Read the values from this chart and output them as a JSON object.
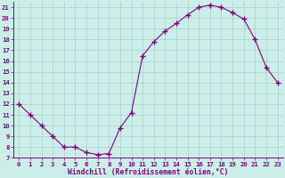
{
  "hours": [
    0,
    1,
    2,
    3,
    4,
    5,
    6,
    7,
    8,
    9,
    10,
    11,
    12,
    13,
    14,
    15,
    16,
    17,
    18,
    19,
    20,
    21,
    22,
    23
  ],
  "values": [
    12,
    11,
    10,
    9,
    8,
    8,
    7.5,
    7.3,
    7.4,
    9.8,
    11.2,
    16.5,
    17.8,
    18.8,
    19.5,
    20.3,
    21.0,
    21.2,
    21.0,
    20.5,
    19.9,
    18.0,
    15.4,
    14.0
  ],
  "line_color": "#800080",
  "marker": "+",
  "marker_size": 4,
  "marker_lw": 1.0,
  "bg_color": "#cceee8",
  "grid_color": "#aacccc",
  "xlabel": "Windchill (Refroidissement éolien,°C)",
  "ylim": [
    7,
    21.5
  ],
  "xlim": [
    -0.5,
    23.5
  ],
  "yticks": [
    7,
    8,
    9,
    10,
    11,
    12,
    13,
    14,
    15,
    16,
    17,
    18,
    19,
    20,
    21
  ],
  "xticks": [
    0,
    1,
    2,
    3,
    4,
    5,
    6,
    7,
    8,
    9,
    10,
    11,
    12,
    13,
    14,
    15,
    16,
    17,
    18,
    19,
    20,
    21,
    22,
    23
  ],
  "tick_fontsize": 5.2,
  "xlabel_fontsize": 5.8,
  "label_color": "#800080",
  "tick_color": "#800080",
  "linewidth": 0.8
}
